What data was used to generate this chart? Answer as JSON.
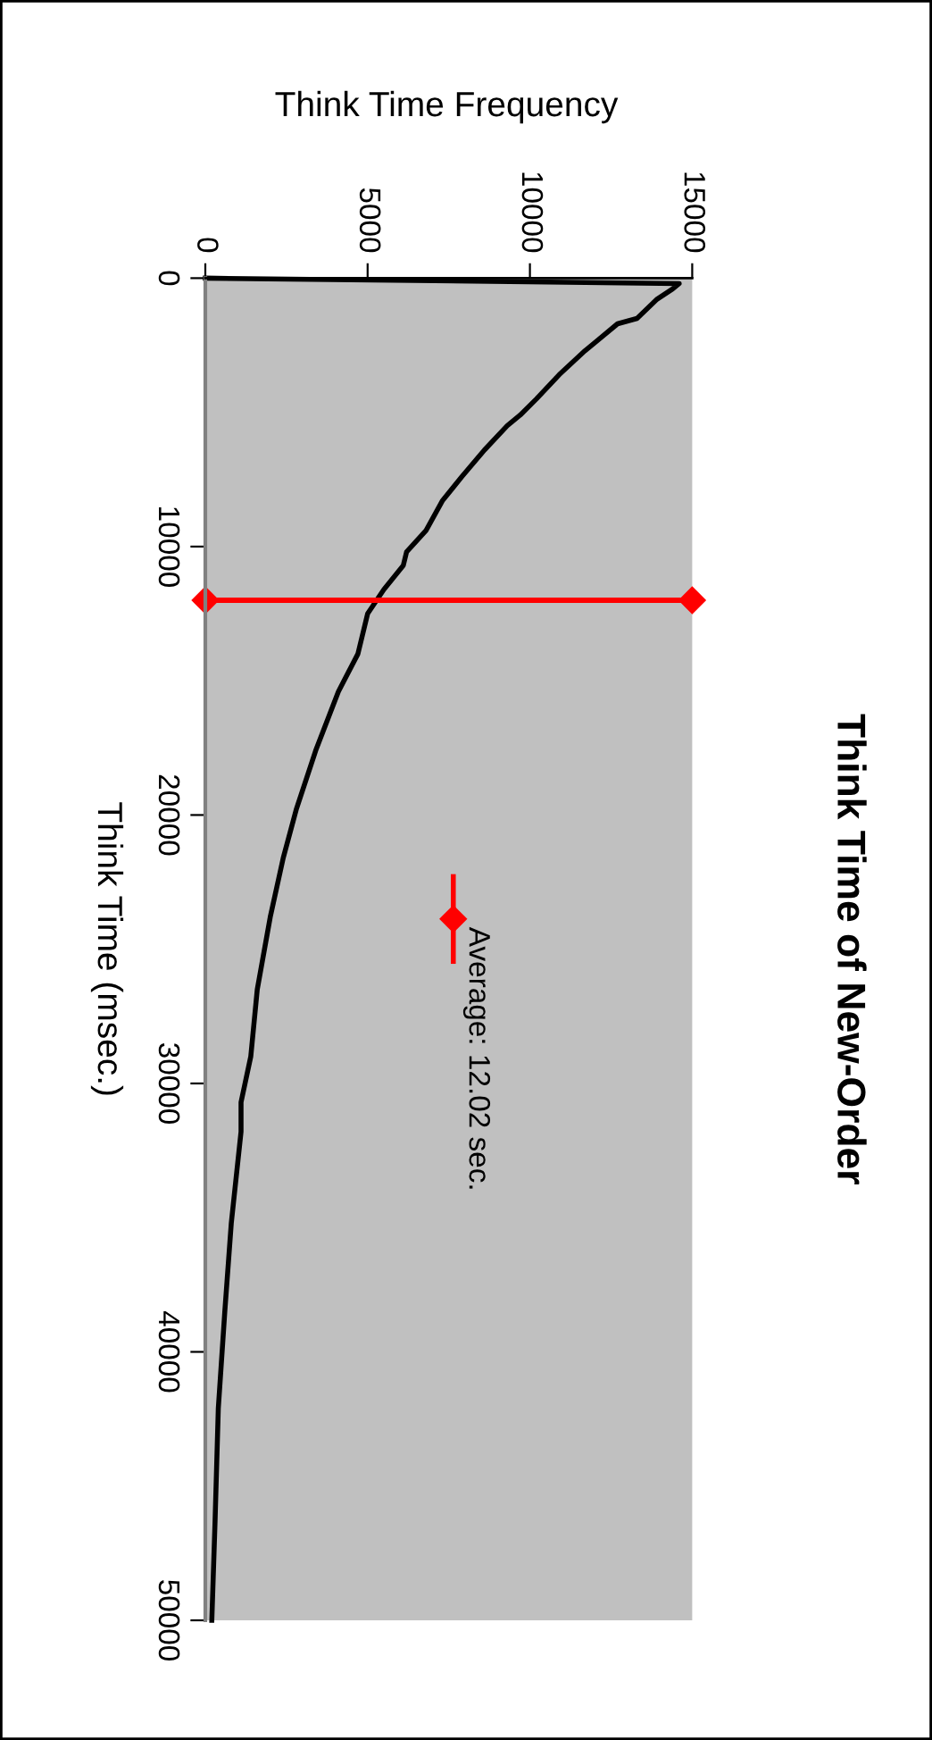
{
  "chart_data": {
    "type": "line",
    "title": "Think Time of New-Order",
    "xlabel": "Think Time Frequency",
    "ylabel": "Think Time (msec.)",
    "xlim": [
      0,
      15000
    ],
    "xticks": [
      0,
      5000,
      10000,
      15000
    ],
    "ylim": [
      50000,
      0
    ],
    "yticks": [
      0,
      10000,
      20000,
      30000,
      40000,
      50000
    ],
    "grid": false,
    "legend": "right",
    "series": [
      {
        "color": "#000000",
        "marker": "none",
        "x": [
          0,
          14600,
          14400,
          13900,
          13300,
          12700,
          12100,
          11700,
          10900,
          10200,
          9700,
          9300,
          8600,
          7900,
          7300,
          6800,
          6200,
          6100,
          5500,
          5000,
          4700,
          4100,
          3400,
          2800,
          2400,
          2000,
          1600,
          1400,
          1100,
          1100,
          800,
          600,
          400,
          300,
          200
        ],
        "values": [
          0,
          200,
          400,
          800,
          1500,
          1700,
          2300,
          2700,
          3600,
          4500,
          5100,
          5500,
          6400,
          7400,
          8300,
          9400,
          10200,
          10700,
          11600,
          12500,
          14000,
          15400,
          17600,
          19800,
          21600,
          23800,
          26500,
          29000,
          30700,
          31800,
          35200,
          38500,
          42100,
          46300,
          50000
        ]
      },
      {
        "name": "Average: 12.02 sec.",
        "color": "#ff0000",
        "marker": "diamond",
        "x": [
          0,
          15000
        ],
        "values": [
          12000,
          12000
        ]
      }
    ]
  }
}
